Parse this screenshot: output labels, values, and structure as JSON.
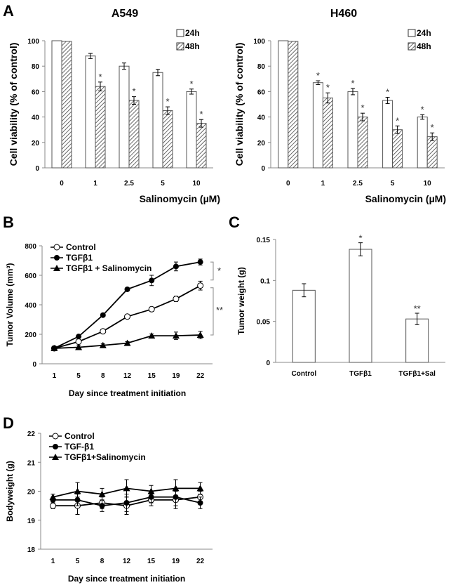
{
  "panels": {
    "A": "A",
    "B": "B",
    "C": "C",
    "D": "D"
  },
  "chart_data": [
    {
      "id": "A549",
      "type": "bar",
      "title": "A549",
      "xlabel": "Salinomycin (µM)",
      "ylabel": "Cell viability (% of control)",
      "ylim": [
        0,
        100
      ],
      "yticks": [
        0,
        20,
        40,
        60,
        80,
        100
      ],
      "categories": [
        "0",
        "1",
        "2.5",
        "5",
        "10"
      ],
      "legend_position": "top-right",
      "series": [
        {
          "name": "24h",
          "style": "open",
          "values": [
            100,
            88,
            80,
            75,
            60
          ],
          "errors": [
            0.3,
            2,
            2.5,
            2.5,
            2
          ],
          "significance": [
            "",
            "",
            "",
            "",
            "*"
          ]
        },
        {
          "name": "48h",
          "style": "hatched",
          "values": [
            99.5,
            64,
            53,
            45,
            35
          ],
          "errors": [
            0.3,
            3.5,
            3,
            3,
            3
          ],
          "significance": [
            "",
            "*",
            "*",
            "*",
            "*"
          ]
        }
      ]
    },
    {
      "id": "H460",
      "type": "bar",
      "title": "H460",
      "xlabel": "Salinomycin (µM)",
      "ylabel": "Cell viability (% of control)",
      "ylim": [
        0,
        100
      ],
      "yticks": [
        0,
        20,
        40,
        60,
        80,
        100
      ],
      "categories": [
        "0",
        "1",
        "2.5",
        "5",
        "10"
      ],
      "legend_position": "top-right",
      "series": [
        {
          "name": "24h",
          "style": "open",
          "values": [
            100,
            67,
            60,
            53,
            40
          ],
          "errors": [
            0.3,
            1.5,
            2.5,
            2.5,
            1.8
          ],
          "significance": [
            "",
            "*",
            "*",
            "*",
            "*"
          ]
        },
        {
          "name": "48h",
          "style": "hatched",
          "values": [
            99.5,
            55,
            40,
            30,
            24.5
          ],
          "errors": [
            0.3,
            4,
            3,
            3,
            3
          ],
          "significance": [
            "",
            "*",
            "*",
            "*",
            "*"
          ]
        }
      ]
    },
    {
      "id": "tumor-volume",
      "type": "line",
      "title": "",
      "xlabel": "Day since treatment initiation",
      "ylabel": "Tumor Volume (mm³)",
      "ylim": [
        0,
        800
      ],
      "yticks": [
        0,
        200,
        400,
        600,
        800
      ],
      "x": [
        "1",
        "5",
        "8",
        "12",
        "15",
        "19",
        "22"
      ],
      "legend_position": "top-left",
      "series": [
        {
          "name": "Control",
          "marker": "open-circle",
          "values": [
            105,
            150,
            220,
            320,
            370,
            440,
            530
          ],
          "errors": [
            8,
            10,
            15,
            12,
            15,
            18,
            30
          ]
        },
        {
          "name": "TGFβ1",
          "marker": "filled-circle",
          "values": [
            105,
            185,
            330,
            505,
            565,
            660,
            690
          ],
          "errors": [
            8,
            10,
            10,
            10,
            35,
            30,
            20
          ]
        },
        {
          "name": "TGFβ1 + Salinomycin",
          "marker": "filled-triangle",
          "values": [
            105,
            112,
            125,
            140,
            190,
            190,
            195
          ],
          "errors": [
            8,
            15,
            10,
            10,
            12,
            25,
            25
          ]
        }
      ],
      "annotations": [
        {
          "between": [
            "TGFβ1",
            "Control"
          ],
          "label": "*"
        },
        {
          "between": [
            "Control",
            "TGFβ1 + Salinomycin"
          ],
          "label": "**"
        }
      ]
    },
    {
      "id": "tumor-weight",
      "type": "bar",
      "title": "",
      "xlabel": "",
      "ylabel": "Tumor weight (g)",
      "ylim": [
        0,
        0.15
      ],
      "yticks": [
        "0",
        "0.05",
        "0.1",
        "0.15"
      ],
      "categories": [
        "Control",
        "TGFβ1",
        "TGFβ1+Sal"
      ],
      "values": [
        0.088,
        0.138,
        0.053
      ],
      "errors": [
        0.008,
        0.008,
        0.007
      ],
      "significance": [
        "",
        "*",
        "**"
      ]
    },
    {
      "id": "bodyweight",
      "type": "line",
      "title": "",
      "xlabel": "Day since treatment initiation",
      "ylabel": "Bodyweight (g)",
      "ylim": [
        18,
        22
      ],
      "yticks": [
        18,
        19,
        20,
        21,
        22
      ],
      "x": [
        "1",
        "5",
        "8",
        "12",
        "15",
        "19",
        "22"
      ],
      "legend_position": "top-left",
      "series": [
        {
          "name": "Control",
          "marker": "open-circle",
          "values": [
            19.5,
            19.5,
            19.6,
            19.5,
            19.7,
            19.7,
            19.8
          ],
          "errors": [
            0.1,
            0.3,
            0.2,
            0.3,
            0.2,
            0.3,
            0.2
          ]
        },
        {
          "name": "TGF-β1",
          "marker": "filled-circle",
          "values": [
            19.7,
            19.7,
            19.5,
            19.6,
            19.8,
            19.8,
            19.6
          ],
          "errors": [
            0.1,
            0.2,
            0.2,
            0.3,
            0.2,
            0.3,
            0.2
          ]
        },
        {
          "name": "TGFβ1+Salinomycin",
          "marker": "filled-triangle",
          "values": [
            19.8,
            20.0,
            19.9,
            20.1,
            20.0,
            20.1,
            20.1
          ],
          "errors": [
            0.1,
            0.3,
            0.2,
            0.3,
            0.2,
            0.3,
            0.2
          ]
        }
      ]
    }
  ]
}
